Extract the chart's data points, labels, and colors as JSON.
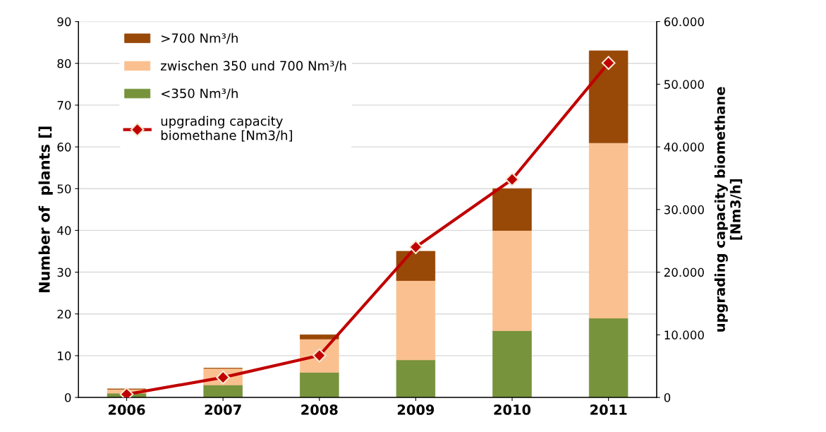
{
  "chart_data": {
    "type": "bar",
    "stacked": true,
    "categories": [
      "2006",
      "2007",
      "2008",
      "2009",
      "2010",
      "2011"
    ],
    "ylabel": "Number of  plants []",
    "y2label": "upgrading capacity biomethane\n[Nm3/h]",
    "ylim": [
      0,
      90
    ],
    "yticks": [
      0,
      10,
      20,
      30,
      40,
      50,
      60,
      70,
      80,
      90
    ],
    "y2lim": [
      0,
      60000
    ],
    "y2ticks": [
      {
        "value": 0,
        "label": "0"
      },
      {
        "value": 10000,
        "label": "10.000"
      },
      {
        "value": 20000,
        "label": "20.000"
      },
      {
        "value": 30000,
        "label": "30.000"
      },
      {
        "value": 40000,
        "label": "40.000"
      },
      {
        "value": 50000,
        "label": "50.000"
      },
      {
        "value": 60000,
        "label": "60.000"
      }
    ],
    "grid": "y",
    "legend": "top left",
    "series": [
      {
        "name": "<350 Nm³/h",
        "color": "#77933c",
        "values": [
          1,
          3,
          6,
          9,
          16,
          19
        ]
      },
      {
        "name": "zwischen 350 und 700 Nm³/h",
        "color": "#fac090",
        "values": [
          1,
          4,
          8,
          19,
          24,
          42
        ]
      },
      {
        "name": ">700 Nm³/h",
        "color": "#984807",
        "values": [
          0,
          0,
          1,
          7,
          10,
          22
        ]
      },
      {
        "name": "upgrading capacity\nbiomethane [Nm3/h]",
        "type": "line",
        "axis": "y2",
        "color": "#c00000",
        "marker": "diamond",
        "values": [
          500,
          3200,
          6700,
          24000,
          34800,
          53400
        ]
      }
    ]
  }
}
